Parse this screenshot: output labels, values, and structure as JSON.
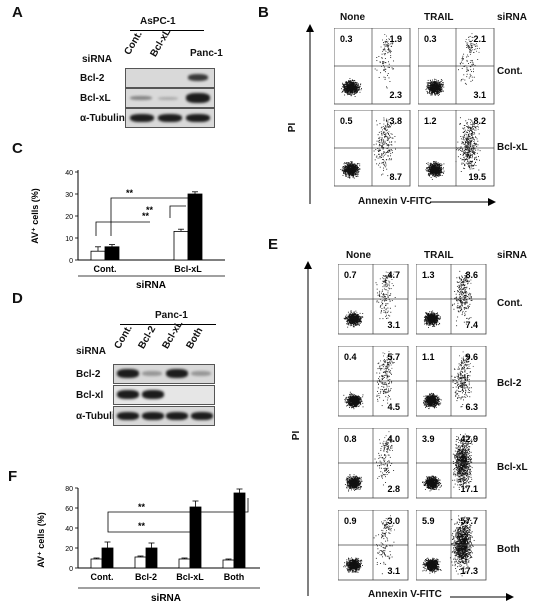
{
  "panelA": {
    "label": "A",
    "cellline": "AsPC-1",
    "lanes": [
      "Cont.",
      "Bcl-xL",
      "Panc-1"
    ],
    "siRNA_label": "siRNA",
    "rows": [
      "Bcl-2",
      "Bcl-xL",
      "α-Tubulin"
    ]
  },
  "panelB": {
    "label": "B",
    "columns": [
      "None",
      "TRAIL"
    ],
    "siRNA_label": "siRNA",
    "rows": [
      "Cont.",
      "Bcl-xL"
    ],
    "ylabel": "PI",
    "xlabel": "Annexin V-FITC",
    "quadrants": [
      [
        [
          "0.3",
          "1.9",
          "2.3"
        ],
        [
          "0.3",
          "2.1",
          "3.1"
        ]
      ],
      [
        [
          "0.5",
          "3.8",
          "8.7"
        ],
        [
          "1.2",
          "8.2",
          "19.5"
        ]
      ]
    ]
  },
  "panelC": {
    "label": "C",
    "ylabel": "AV⁺ cells (%)",
    "xlabel": "siRNA",
    "sig": [
      "**",
      "**",
      "**"
    ]
  },
  "panelD": {
    "label": "D",
    "cellline": "Panc-1",
    "lanes": [
      "Cont.",
      "Bcl-2",
      "Bcl-xL",
      "Both"
    ],
    "siRNA_label": "siRNA",
    "rows": [
      "Bcl-2",
      "Bcl-xl",
      "α-Tubulin"
    ]
  },
  "panelE": {
    "label": "E",
    "columns": [
      "None",
      "TRAIL"
    ],
    "siRNA_label": "siRNA",
    "rows": [
      "Cont.",
      "Bcl-2",
      "Bcl-xL",
      "Both"
    ],
    "ylabel": "PI",
    "xlabel": "Annexin V-FITC",
    "quadrants": [
      [
        [
          "0.7",
          "4.7",
          "3.1"
        ],
        [
          "1.3",
          "8.6",
          "7.4"
        ]
      ],
      [
        [
          "0.4",
          "5.7",
          "4.5"
        ],
        [
          "1.1",
          "9.6",
          "6.3"
        ]
      ],
      [
        [
          "0.8",
          "4.0",
          "2.8"
        ],
        [
          "3.9",
          "42.9",
          "17.1"
        ]
      ],
      [
        [
          "0.9",
          "3.0",
          "3.1"
        ],
        [
          "5.9",
          "57.7",
          "17.3"
        ]
      ]
    ]
  },
  "panelF": {
    "label": "F",
    "ylabel": "AV⁺ cells (%)",
    "xlabel": "siRNA",
    "sig": [
      "**",
      "**"
    ]
  },
  "chart_data": [
    {
      "type": "bar",
      "panel": "C",
      "categories": [
        "Cont.",
        "Bcl-xL"
      ],
      "series": [
        {
          "values": [
            4,
            13
          ],
          "errors": [
            2,
            1
          ],
          "color": "#ffffff"
        },
        {
          "values": [
            6,
            30
          ],
          "errors": [
            1,
            1
          ],
          "color": "#000000"
        }
      ],
      "ylabel": "AV⁺ cells (%)",
      "xlabel": "siRNA",
      "ylim": [
        0,
        40
      ],
      "yticks": [
        "0",
        "10",
        "20",
        "30",
        "40"
      ],
      "grid": false
    },
    {
      "type": "bar",
      "panel": "F",
      "categories": [
        "Cont.",
        "Bcl-2",
        "Bcl-xL",
        "Both"
      ],
      "series": [
        {
          "values": [
            9,
            11,
            9,
            8
          ],
          "errors": [
            1,
            1,
            1,
            1
          ],
          "color": "#ffffff"
        },
        {
          "values": [
            20,
            20,
            61,
            75
          ],
          "errors": [
            6,
            5,
            6,
            4
          ],
          "color": "#000000"
        }
      ],
      "ylabel": "AV⁺ cells (%)",
      "xlabel": "siRNA",
      "ylim": [
        0,
        80
      ],
      "yticks": [
        "0",
        "20",
        "40",
        "60",
        "80"
      ],
      "grid": false
    }
  ]
}
